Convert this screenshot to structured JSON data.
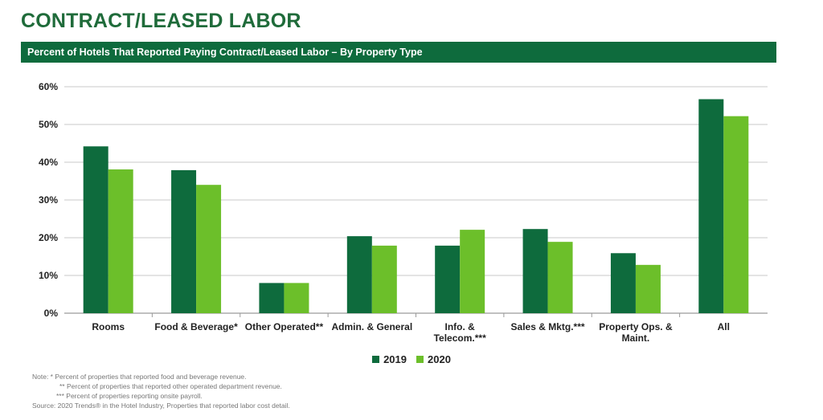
{
  "page": {
    "title": "CONTRACT/LEASED LABOR",
    "banner": "Percent of Hotels That Reported Paying Contract/Leased Labor – By Property Type",
    "notes": [
      "Note: * Percent of properties that reported food and beverage revenue.",
      "** Percent of properties that reported other operated department revenue.",
      "*** Percent of properties reporting onsite payroll.",
      "Source: 2020 Trends® in the Hotel Industry, Properties that reported labor cost detail."
    ]
  },
  "colors": {
    "s2019": "#0e6b3d",
    "s2020": "#6cbf2a",
    "grid": "#c8c8c8",
    "banner": "#0e6b3d",
    "title": "#1f6b3a"
  },
  "chart_data": {
    "type": "bar",
    "title": "Percent of Hotels That Reported Paying Contract/Leased Labor – By Property Type",
    "categories": [
      "Rooms",
      "Food & Beverage*",
      "Other Operated**",
      "Admin. & General",
      "Info. & Telecom.***",
      "Sales & Mktg.***",
      "Property Ops. & Maint.",
      "All"
    ],
    "category_lines": [
      [
        "Rooms"
      ],
      [
        "Food & Beverage*"
      ],
      [
        "Other Operated**"
      ],
      [
        "Admin. & General"
      ],
      [
        "Info. &",
        "Telecom.***"
      ],
      [
        "Sales & Mktg.***"
      ],
      [
        "Property Ops. &",
        "Maint."
      ],
      [
        "All"
      ]
    ],
    "series": [
      {
        "name": "2019",
        "values": [
          44.2,
          37.9,
          8.0,
          20.4,
          17.9,
          22.3,
          15.9,
          56.7
        ]
      },
      {
        "name": "2020",
        "values": [
          38.1,
          34.0,
          8.0,
          17.9,
          22.1,
          18.9,
          12.8,
          52.2
        ]
      }
    ],
    "ylim": [
      0,
      60
    ],
    "yticks": [
      "0%",
      "10%",
      "20%",
      "30%",
      "40%",
      "50%",
      "60%"
    ],
    "xlabel": "",
    "ylabel": "",
    "legend_position": "bottom-center",
    "grid": true
  }
}
